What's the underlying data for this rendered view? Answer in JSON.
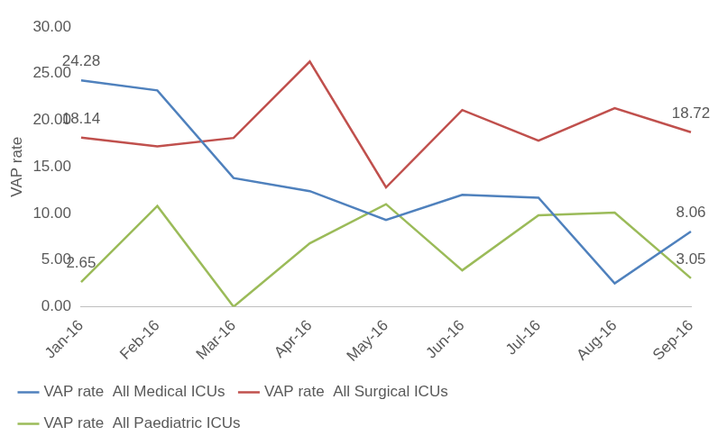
{
  "chart_data": {
    "type": "line",
    "categories": [
      "Jan-16",
      "Feb-16",
      "Mar-16",
      "Apr-16",
      "May-16",
      "Jun-16",
      "Jul-16",
      "Aug-16",
      "Sep-16"
    ],
    "y_label": "VAP rate",
    "series": [
      {
        "name": "VAP rate  All Medical ICUs",
        "color": "#4f81bd",
        "values": [
          24.28,
          23.2,
          13.8,
          12.4,
          9.3,
          12.0,
          11.7,
          2.5,
          8.06
        ],
        "value_labels": [
          "24.28",
          null,
          null,
          null,
          null,
          null,
          null,
          null,
          "8.06"
        ]
      },
      {
        "name": "VAP rate  All Surgical ICUs",
        "color": "#c0504d",
        "values": [
          18.14,
          17.2,
          18.1,
          26.3,
          12.8,
          21.1,
          17.8,
          21.3,
          18.72
        ],
        "value_labels": [
          "18.14",
          null,
          null,
          null,
          null,
          null,
          null,
          null,
          "18.72"
        ]
      },
      {
        "name": "VAP rate  All Paediatric ICUs",
        "color": "#9bbb59",
        "values": [
          2.65,
          10.8,
          0.0,
          6.8,
          11.0,
          3.9,
          9.8,
          10.1,
          3.05
        ],
        "value_labels": [
          "2.65",
          null,
          null,
          null,
          null,
          null,
          null,
          null,
          "3.05"
        ]
      }
    ],
    "ylim": [
      0,
      30
    ],
    "yticks": [
      {
        "value": 0,
        "label": "0.00"
      },
      {
        "value": 5,
        "label": "5.00"
      },
      {
        "value": 10,
        "label": "10.00"
      },
      {
        "value": 15,
        "label": "15.00"
      },
      {
        "value": 20,
        "label": "20.00"
      },
      {
        "value": 25,
        "label": "25.00"
      },
      {
        "value": 30,
        "label": "30.00"
      }
    ],
    "grid": false,
    "legend": "bottom",
    "data_labels": true
  }
}
